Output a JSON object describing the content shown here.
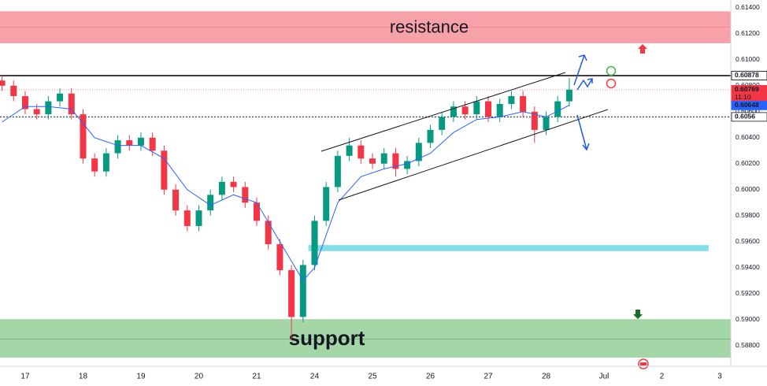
{
  "chart_data": {
    "type": "candlestick",
    "x": [
      -0.4,
      -0.2,
      0,
      0.2,
      0.4,
      0.6,
      0.8,
      1.0,
      1.2,
      1.4,
      1.6,
      1.8,
      2.0,
      2.2,
      2.4,
      2.6,
      2.8,
      3.0,
      3.2,
      3.4,
      3.6,
      3.8,
      4.0,
      4.2,
      4.4,
      4.6,
      4.8,
      5.0,
      5.2,
      5.4,
      5.6,
      5.8,
      6.0,
      6.2,
      6.4,
      6.6,
      6.8,
      7.0,
      7.2,
      7.4,
      7.6,
      7.8,
      8.0,
      8.2,
      8.4,
      8.6,
      8.8,
      9.0,
      9.2,
      9.4
    ],
    "open": [
      0.6084,
      0.608,
      0.6072,
      0.6062,
      0.6058,
      0.6068,
      0.6074,
      0.6058,
      0.6024,
      0.6014,
      0.6028,
      0.6038,
      0.6034,
      0.604,
      0.603,
      0.6,
      0.5984,
      0.5972,
      0.5984,
      0.5996,
      0.6006,
      0.6002,
      0.599,
      0.5976,
      0.5958,
      0.5938,
      0.5902,
      0.5942,
      0.5976,
      0.6002,
      0.6026,
      0.6034,
      0.6024,
      0.602,
      0.6028,
      0.6016,
      0.6022,
      0.6036,
      0.6046,
      0.6056,
      0.6064,
      0.6058,
      0.6068,
      0.6056,
      0.6066,
      0.6072,
      0.606,
      0.6046,
      0.6056,
      0.6068
    ],
    "high": [
      0.6088,
      0.6084,
      0.6076,
      0.6066,
      0.6072,
      0.6078,
      0.6078,
      0.6062,
      0.6028,
      0.6032,
      0.6042,
      0.6042,
      0.6044,
      0.6044,
      0.6034,
      0.6004,
      0.5988,
      0.5988,
      0.6,
      0.601,
      0.601,
      0.6006,
      0.5994,
      0.598,
      0.5962,
      0.5942,
      0.5946,
      0.598,
      0.6006,
      0.603,
      0.604,
      0.6038,
      0.6028,
      0.6032,
      0.6032,
      0.6026,
      0.604,
      0.605,
      0.606,
      0.6068,
      0.6068,
      0.6072,
      0.6072,
      0.607,
      0.6076,
      0.6076,
      0.6064,
      0.606,
      0.6072,
      0.6086
    ],
    "low": [
      0.6076,
      0.6068,
      0.6058,
      0.6054,
      0.6054,
      0.6064,
      0.6054,
      0.602,
      0.601,
      0.601,
      0.6024,
      0.603,
      0.603,
      0.6026,
      0.5996,
      0.598,
      0.5968,
      0.5968,
      0.598,
      0.5992,
      0.5998,
      0.5986,
      0.5972,
      0.5954,
      0.5934,
      0.5884,
      0.5898,
      0.5938,
      0.5972,
      0.5998,
      0.6022,
      0.602,
      0.6016,
      0.6016,
      0.601,
      0.6012,
      0.6018,
      0.6032,
      0.6042,
      0.6052,
      0.6054,
      0.6054,
      0.6052,
      0.6052,
      0.6062,
      0.6056,
      0.6036,
      0.6042,
      0.6052,
      0.6064
    ],
    "close": [
      0.608,
      0.6072,
      0.6062,
      0.6058,
      0.6068,
      0.6074,
      0.6058,
      0.6024,
      0.6014,
      0.6028,
      0.6038,
      0.6034,
      0.604,
      0.603,
      0.6,
      0.5984,
      0.5972,
      0.5984,
      0.5996,
      0.6006,
      0.6002,
      0.599,
      0.5976,
      0.5958,
      0.5938,
      0.5902,
      0.5942,
      0.5976,
      0.6002,
      0.6026,
      0.6034,
      0.6024,
      0.602,
      0.6028,
      0.6016,
      0.6022,
      0.6036,
      0.6046,
      0.6056,
      0.6064,
      0.6058,
      0.6068,
      0.6056,
      0.6066,
      0.6072,
      0.606,
      0.6046,
      0.6056,
      0.6068,
      0.6077
    ],
    "up_color": "#089981",
    "down_color": "#f23645",
    "ma": {
      "color": "#2962ff",
      "x": [
        -0.4,
        0,
        0.4,
        0.8,
        1.2,
        1.6,
        2.0,
        2.4,
        2.8,
        3.2,
        3.6,
        4.0,
        4.4,
        4.8,
        5.0,
        5.4,
        5.8,
        6.2,
        6.6,
        7.0,
        7.4,
        7.8,
        8.2,
        8.6,
        9.0,
        9.4
      ],
      "values": [
        0.6052,
        0.6064,
        0.6064,
        0.6062,
        0.604,
        0.6034,
        0.6034,
        0.6024,
        0.6,
        0.5988,
        0.5996,
        0.599,
        0.596,
        0.593,
        0.594,
        0.599,
        0.601,
        0.6016,
        0.602,
        0.6028,
        0.6044,
        0.6054,
        0.6056,
        0.606,
        0.6056,
        0.6065
      ]
    },
    "zones": [
      {
        "name": "resistance",
        "low": 0.6113,
        "high": 0.6137,
        "mid": 0.6125,
        "color": "#f7a1a8",
        "text_color": "#e8596b"
      },
      {
        "name": "support",
        "low": 0.5871,
        "high": 0.59,
        "mid": 0.5885,
        "color": "#a5d6a7",
        "text_color": "#1b6b28"
      },
      {
        "low": 0.5953,
        "high": 0.5957,
        "x": [
          4.9,
          11.8
        ],
        "color": "#80deea"
      }
    ],
    "price_lines": [
      {
        "value": 0.60878,
        "color": "#000000",
        "style": "solid"
      },
      {
        "value": 0.60769,
        "color": "#f23645",
        "style": "dotted",
        "countdown": "11:10"
      },
      {
        "value": 0.60648,
        "color": "#2962ff",
        "style": "none"
      },
      {
        "value": 0.6056,
        "color": "#131722",
        "style": "dashed"
      }
    ],
    "xlim": [
      -0.435,
      12.19
    ],
    "ylim": [
      0.5864,
      0.6146
    ],
    "xticks": [
      {
        "value": 0,
        "label": "17"
      },
      {
        "value": 1,
        "label": "18"
      },
      {
        "value": 2,
        "label": "19"
      },
      {
        "value": 3,
        "label": "20"
      },
      {
        "value": 4,
        "label": "21"
      },
      {
        "value": 5,
        "label": "24"
      },
      {
        "value": 6,
        "label": "25"
      },
      {
        "value": 7,
        "label": "26"
      },
      {
        "value": 8,
        "label": "27"
      },
      {
        "value": 9,
        "label": "28"
      },
      {
        "value": 10,
        "label": "Jul"
      },
      {
        "value": 11,
        "label": "2"
      },
      {
        "value": 12,
        "label": "3"
      }
    ],
    "yticks": [
      {
        "value": 0.614,
        "label": "0.61400"
      },
      {
        "value": 0.612,
        "label": "0.61200"
      },
      {
        "value": 0.61,
        "label": "0.61000"
      },
      {
        "value": 0.608,
        "label": "0.60800"
      },
      {
        "value": 0.606,
        "label": "0.60600"
      },
      {
        "value": 0.604,
        "label": "0.60400"
      },
      {
        "value": 0.602,
        "label": "0.60200"
      },
      {
        "value": 0.6,
        "label": "0.60000"
      },
      {
        "value": 0.598,
        "label": "0.59800"
      },
      {
        "value": 0.596,
        "label": "0.59600"
      },
      {
        "value": 0.594,
        "label": "0.59400"
      },
      {
        "value": 0.592,
        "label": "0.59200"
      },
      {
        "value": 0.59,
        "label": "0.59000"
      },
      {
        "value": 0.588,
        "label": "0.58800"
      }
    ],
    "grid": true
  }
}
